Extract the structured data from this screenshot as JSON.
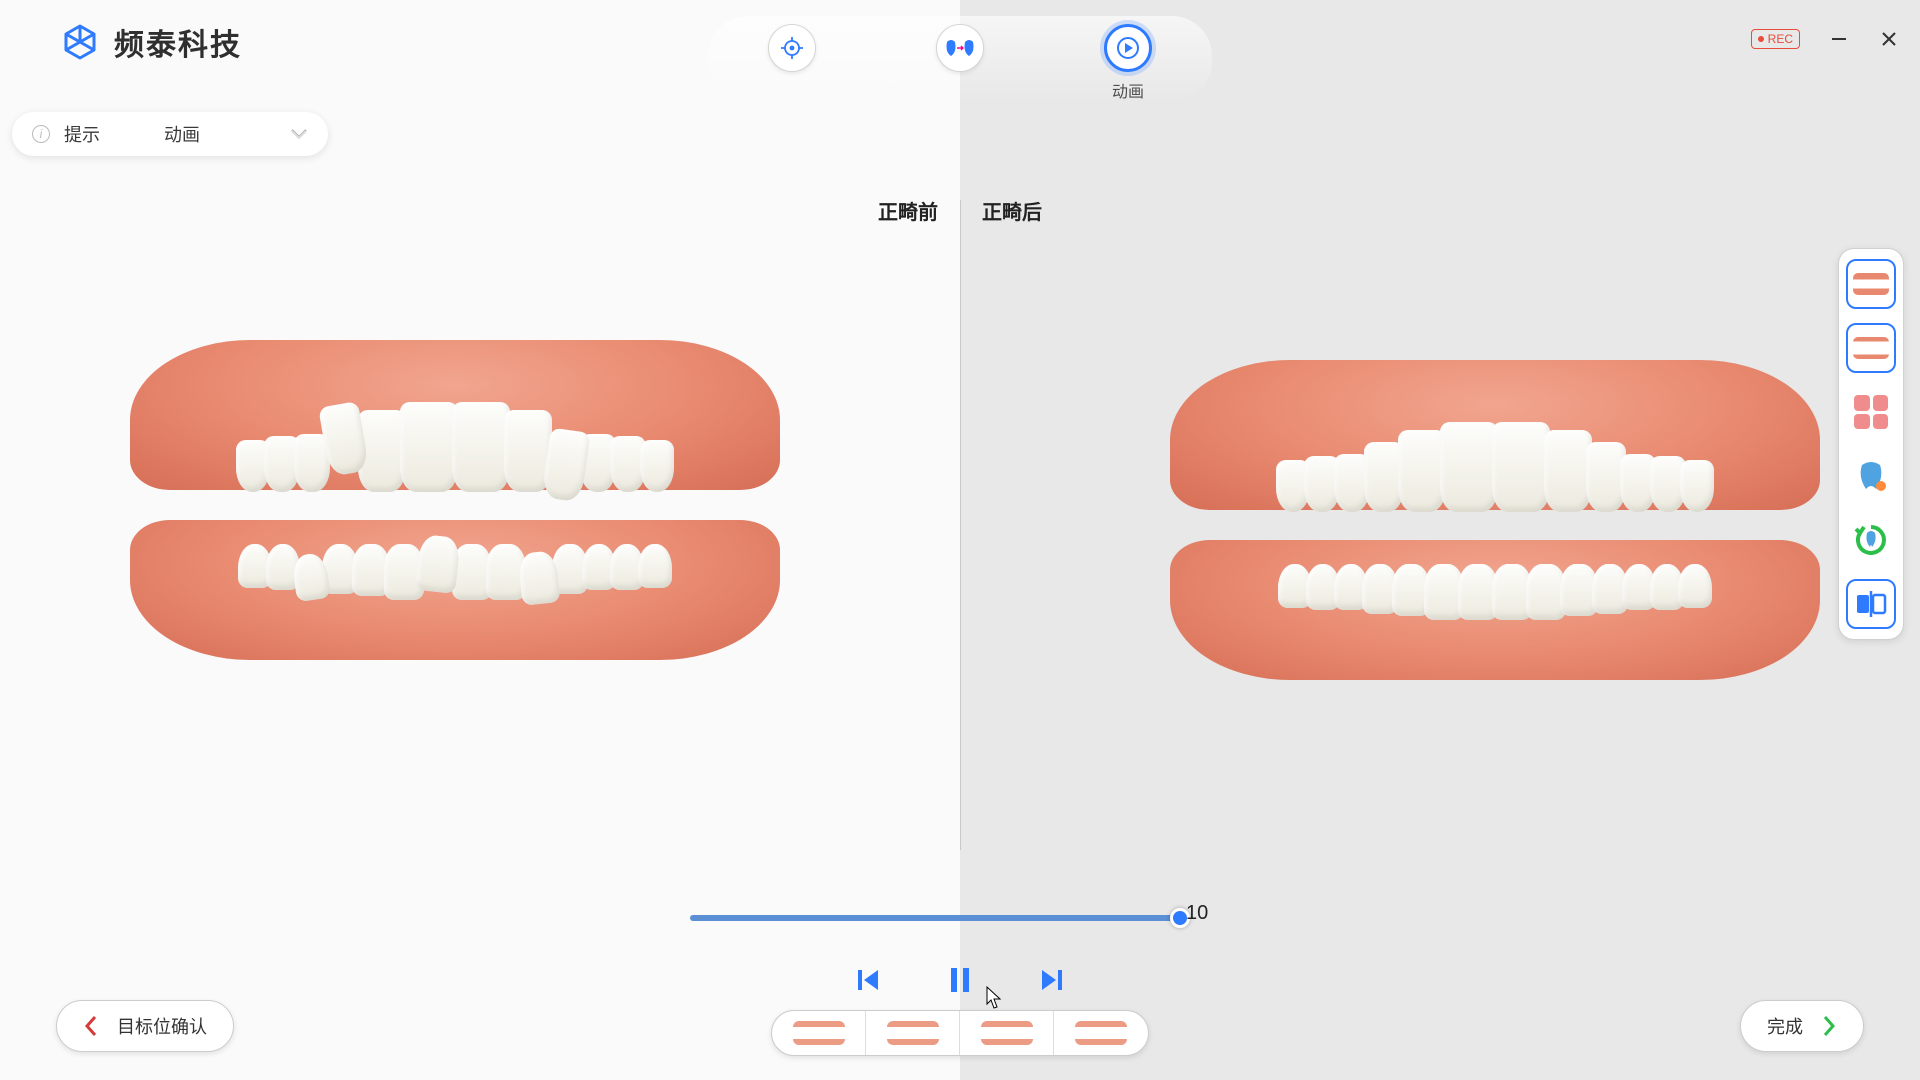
{
  "brand": {
    "name": "频泰科技"
  },
  "top_tools": {
    "target_label": "",
    "compare_label": "",
    "animation_label": "动画"
  },
  "window_controls": {
    "rec_label": "REC"
  },
  "hint": {
    "title": "提示",
    "value": "动画"
  },
  "split": {
    "before": "正畸前",
    "after": "正畸后"
  },
  "timeline": {
    "value": "10",
    "progress_pct": 100
  },
  "bottom_nav": {
    "back_label": "目标位确认",
    "next_label": "完成"
  },
  "colors": {
    "accent": "#2f7bff",
    "gum": "#e8896f",
    "tooth": "#f6f5ef",
    "bg_left": "#fafafa",
    "bg_right": "#e8e8e8",
    "rec": "#e74c3c"
  },
  "teeth_model": {
    "upper_widths": [
      34,
      36,
      36,
      40,
      48,
      58,
      58,
      48,
      40,
      36,
      36,
      34
    ],
    "upper_heights": [
      52,
      56,
      58,
      70,
      82,
      90,
      90,
      82,
      70,
      58,
      56,
      52
    ],
    "lower_widths": [
      34,
      34,
      34,
      36,
      38,
      40,
      40,
      40,
      40,
      38,
      36,
      34,
      34,
      34
    ],
    "lower_heights": [
      44,
      46,
      46,
      50,
      52,
      56,
      56,
      56,
      56,
      52,
      50,
      46,
      46,
      44
    ]
  }
}
